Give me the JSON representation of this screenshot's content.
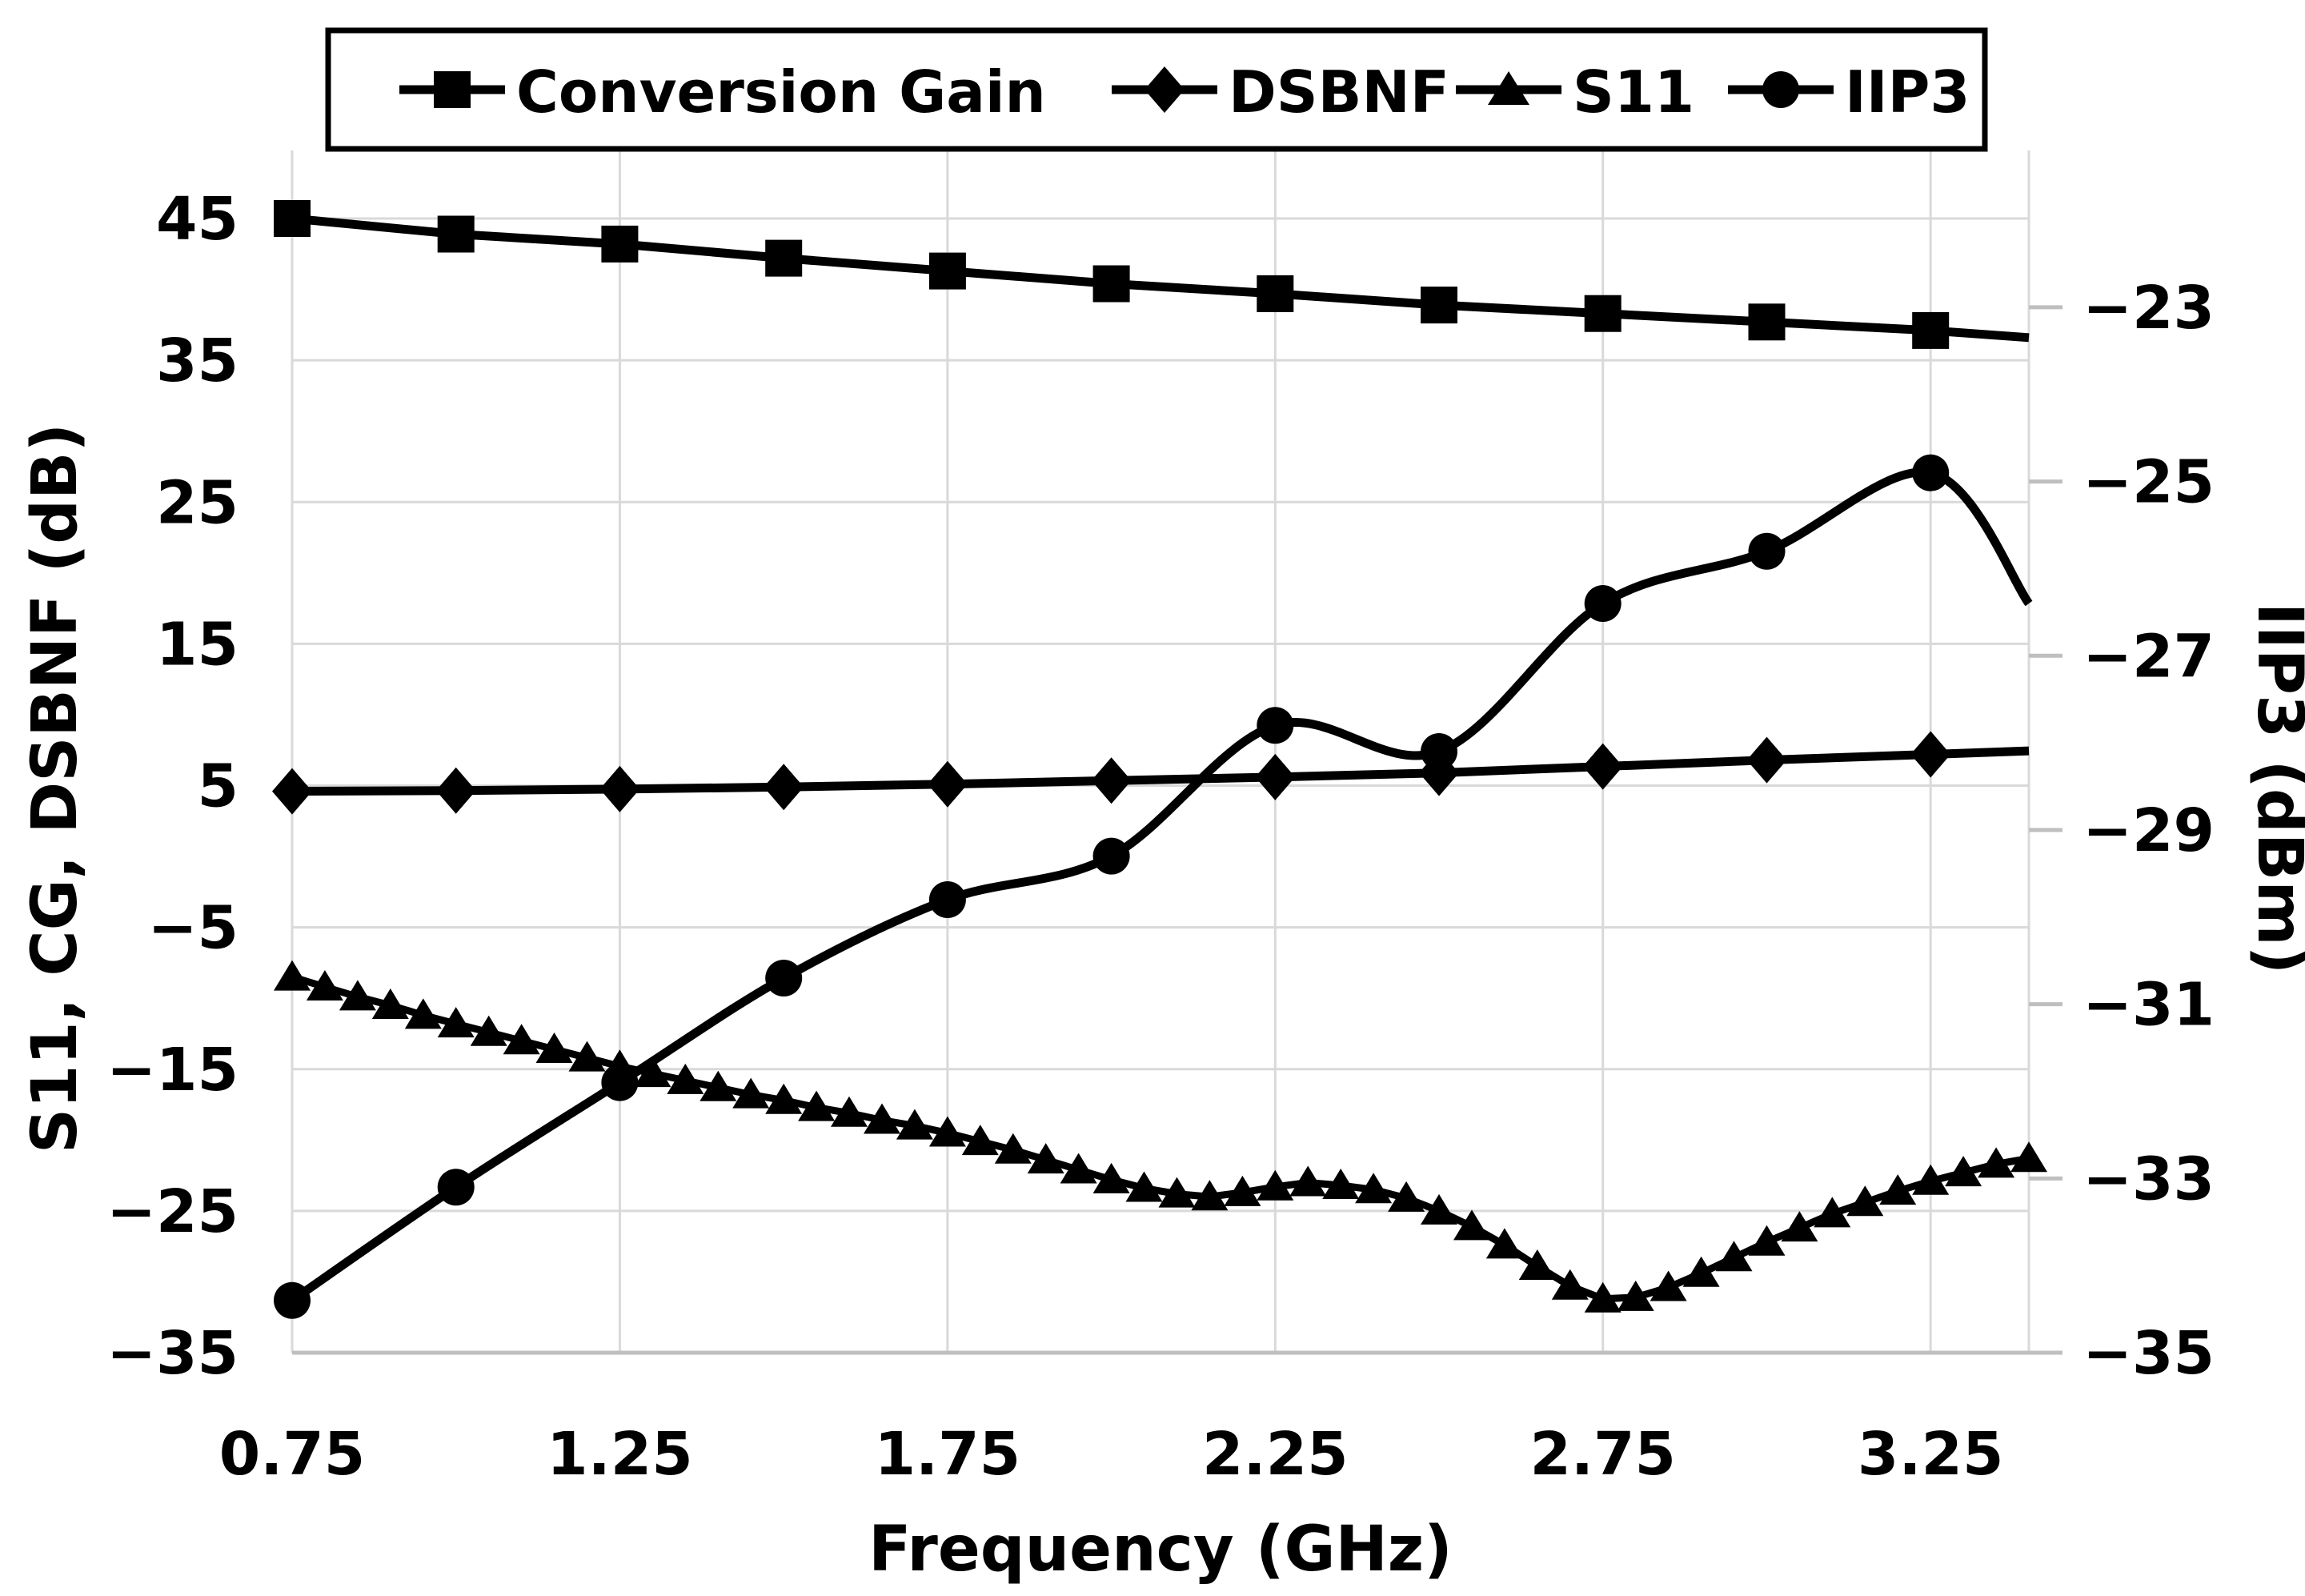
{
  "figure": {
    "background": "#ffffff"
  },
  "colors": {
    "series": "#000000",
    "gridline": "#d9d9d9",
    "axis_line": "#bfbfbf",
    "text": "#000000",
    "legend_border": "#000000"
  },
  "legend": {
    "items": [
      {
        "label": "Conversion Gain",
        "marker": "square-icon"
      },
      {
        "label": "DSBNF",
        "marker": "diamond-icon"
      },
      {
        "label": "S11",
        "marker": "triangle-icon"
      },
      {
        "label": "IIP3",
        "marker": "circle-icon"
      }
    ]
  },
  "chart_data": {
    "type": "line",
    "title": "",
    "xlabel": "Frequency (GHz)",
    "ylabel_left": "S11, CG, DSBNF (dB)",
    "ylabel_right": "IIP3 (dBm)",
    "x_axis": {
      "min": 0.75,
      "max": 3.4,
      "ticks": [
        0.75,
        1.25,
        1.75,
        2.25,
        2.75,
        3.25
      ],
      "tick_labels": [
        "0.75",
        "1.25",
        "1.75",
        "2.25",
        "2.75",
        "3.25"
      ],
      "gridlines": true
    },
    "y_left_axis": {
      "min": -35,
      "max": 49.8,
      "ticks": [
        45,
        35,
        25,
        15,
        5,
        -5,
        -15,
        -25,
        -35
      ],
      "tick_labels": [
        "45",
        "35",
        "25",
        "15",
        "5",
        "−5",
        "−15",
        "−25",
        "−35"
      ],
      "gridlines": true
    },
    "y_right_axis": {
      "min": -35,
      "max": -21.2,
      "ticks": [
        -23,
        -25,
        -27,
        -29,
        -31,
        -33,
        -35
      ],
      "tick_labels": [
        "−23",
        "−25",
        "−27",
        "−29",
        "−31",
        "−33",
        "−35"
      ],
      "gridlines": false
    },
    "series": [
      {
        "name": "Conversion Gain",
        "axis": "left",
        "marker": "square",
        "smooth": false,
        "marker_on_last_point": false,
        "x": [
          0.75,
          1.0,
          1.25,
          1.5,
          1.75,
          2.0,
          2.25,
          2.5,
          2.75,
          3.0,
          3.25,
          3.4
        ],
        "y": [
          45.0,
          43.9,
          43.2,
          42.2,
          41.3,
          40.4,
          39.7,
          38.9,
          38.3,
          37.7,
          37.1,
          36.6
        ]
      },
      {
        "name": "DSBNF",
        "axis": "left",
        "marker": "diamond",
        "smooth": false,
        "marker_on_last_point": false,
        "x": [
          0.75,
          1.0,
          1.25,
          1.5,
          1.75,
          2.0,
          2.25,
          2.5,
          2.75,
          3.0,
          3.25,
          3.4
        ],
        "y": [
          4.6,
          4.65,
          4.75,
          4.9,
          5.1,
          5.35,
          5.6,
          5.9,
          6.35,
          6.8,
          7.2,
          7.45
        ]
      },
      {
        "name": "S11",
        "axis": "left",
        "marker": "triangle",
        "smooth": false,
        "marker_on_last_point": true,
        "x": [
          0.75,
          0.8,
          0.85,
          0.9,
          0.95,
          1.0,
          1.05,
          1.1,
          1.15,
          1.2,
          1.25,
          1.3,
          1.35,
          1.4,
          1.45,
          1.5,
          1.55,
          1.6,
          1.65,
          1.7,
          1.75,
          1.8,
          1.85,
          1.9,
          1.95,
          2.0,
          2.05,
          2.1,
          2.15,
          2.2,
          2.25,
          2.3,
          2.35,
          2.4,
          2.45,
          2.5,
          2.55,
          2.6,
          2.65,
          2.7,
          2.75,
          2.8,
          2.85,
          2.9,
          2.95,
          3.0,
          3.05,
          3.1,
          3.15,
          3.2,
          3.25,
          3.3,
          3.35,
          3.4
        ],
        "y": [
          -8.5,
          -9.2,
          -9.9,
          -10.5,
          -11.2,
          -11.8,
          -12.4,
          -13.0,
          -13.6,
          -14.2,
          -14.8,
          -15.3,
          -15.8,
          -16.3,
          -16.8,
          -17.2,
          -17.7,
          -18.1,
          -18.6,
          -19.0,
          -19.5,
          -20.1,
          -20.7,
          -21.4,
          -22.1,
          -22.8,
          -23.4,
          -23.8,
          -24.0,
          -23.7,
          -23.3,
          -23.0,
          -23.2,
          -23.5,
          -24.1,
          -25.0,
          -26.1,
          -27.4,
          -28.9,
          -30.3,
          -31.2,
          -31.1,
          -30.4,
          -29.4,
          -28.3,
          -27.2,
          -26.2,
          -25.2,
          -24.4,
          -23.6,
          -22.9,
          -22.3,
          -21.7,
          -21.3
        ]
      },
      {
        "name": "IIP3",
        "axis": "right",
        "marker": "circle",
        "smooth": true,
        "marker_on_last_point": false,
        "x": [
          0.75,
          1.0,
          1.25,
          1.5,
          1.75,
          2.0,
          2.25,
          2.5,
          2.75,
          3.0,
          3.25,
          3.4
        ],
        "y": [
          -34.4,
          -33.1,
          -31.9,
          -30.7,
          -29.8,
          -29.3,
          -27.8,
          -28.1,
          -26.4,
          -25.8,
          -24.9,
          -26.4
        ]
      }
    ]
  }
}
